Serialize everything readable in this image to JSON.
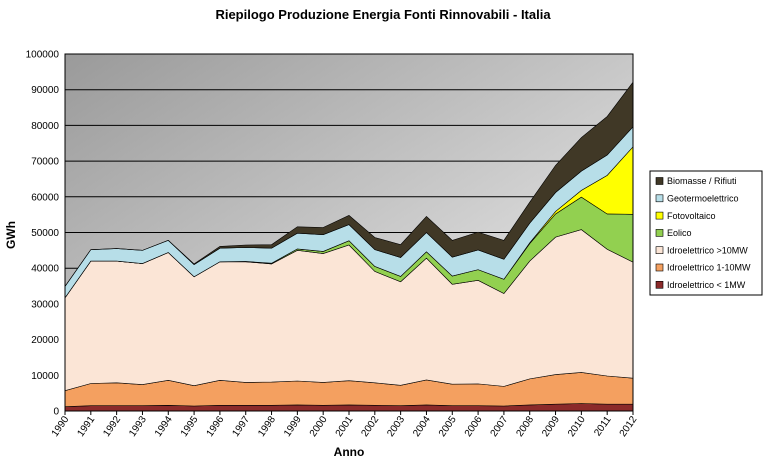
{
  "chart_data": {
    "type": "area",
    "stacked": true,
    "title": "Riepilogo Produzione Energia Fonti Rinnovabili - Italia",
    "xlabel": "Anno",
    "ylabel": "GWh",
    "ylim": [
      0,
      100000
    ],
    "yticks": [
      0,
      10000,
      20000,
      30000,
      40000,
      50000,
      60000,
      70000,
      80000,
      90000,
      100000
    ],
    "grid": true,
    "legend_position": "right",
    "x": [
      "1990",
      "1991",
      "1992",
      "1993",
      "1994",
      "1995",
      "1996",
      "1997",
      "1998",
      "1999",
      "2000",
      "2001",
      "2002",
      "2003",
      "2004",
      "2005",
      "2006",
      "2007",
      "2008",
      "2009",
      "2010",
      "2011",
      "2012"
    ],
    "series": [
      {
        "name": "Idroelettrico < 1MW",
        "color": "#8b2a2a",
        "values": [
          1200,
          1500,
          1500,
          1500,
          1600,
          1400,
          1600,
          1600,
          1600,
          1700,
          1600,
          1700,
          1600,
          1500,
          1700,
          1500,
          1500,
          1400,
          1700,
          1900,
          2100,
          1900,
          1900
        ]
      },
      {
        "name": "Idroelettrico 1-10MW",
        "color": "#f4a060",
        "values": [
          4500,
          6200,
          6400,
          5900,
          7000,
          5700,
          7000,
          6400,
          6500,
          6700,
          6400,
          6800,
          6300,
          5700,
          7000,
          6000,
          6100,
          5500,
          7300,
          8300,
          8700,
          7900,
          7300
        ]
      },
      {
        "name": "Idroelettrico >10MW",
        "color": "#fbe5d6",
        "values": [
          26000,
          34300,
          34100,
          33900,
          35800,
          30500,
          33200,
          33800,
          33100,
          36600,
          36100,
          38000,
          31200,
          29000,
          34100,
          28000,
          29000,
          26000,
          33000,
          38500,
          40000,
          35500,
          32500
        ]
      },
      {
        "name": "Eolico",
        "color": "#92d050",
        "values": [
          0,
          0,
          0,
          0,
          0,
          0,
          0,
          100,
          200,
          400,
          600,
          1200,
          1400,
          1500,
          1800,
          2300,
          3000,
          4000,
          4900,
          6500,
          9100,
          9900,
          13400
        ]
      },
      {
        "name": "Fotovoltaico",
        "color": "#ffff00",
        "values": [
          0,
          0,
          0,
          0,
          0,
          0,
          0,
          0,
          0,
          0,
          0,
          0,
          0,
          0,
          0,
          0,
          0,
          0,
          200,
          700,
          1900,
          10800,
          18900
        ]
      },
      {
        "name": "Geotermoelettrico",
        "color": "#b7dee8",
        "values": [
          3200,
          3200,
          3500,
          3700,
          3400,
          3400,
          3800,
          3900,
          4200,
          4400,
          4700,
          4500,
          4700,
          5300,
          5400,
          5300,
          5500,
          5600,
          5500,
          5300,
          5400,
          5700,
          5600
        ]
      },
      {
        "name": "Biomasse / Rifiuti",
        "color": "#403826",
        "values": [
          0,
          0,
          0,
          0,
          0,
          200,
          500,
          700,
          1000,
          1800,
          2000,
          2600,
          3400,
          3600,
          4500,
          4700,
          5000,
          5300,
          5900,
          7600,
          9400,
          10800,
          12500
        ]
      }
    ]
  }
}
